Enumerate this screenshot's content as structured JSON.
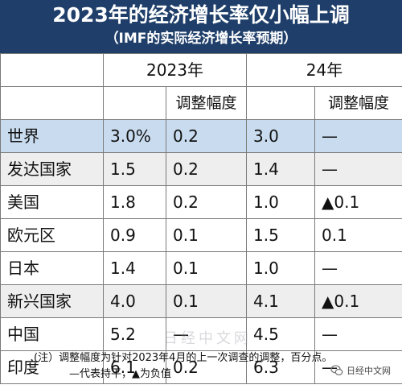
{
  "header": {
    "title": "2023年的经济增长率仅小幅上调",
    "subtitle": "（IMF的实际经济增长率预期）"
  },
  "table": {
    "year_headers": [
      "2023年",
      "24年"
    ],
    "adjust_label": "调整幅度",
    "rows": [
      {
        "name": "世界",
        "v2023": "3.0%",
        "adj2023": "0.2",
        "v24": "3.0",
        "adj24": "—"
      },
      {
        "name": "发达国家",
        "v2023": "1.5",
        "adj2023": "0.2",
        "v24": "1.4",
        "adj24": "—"
      },
      {
        "name": "美国",
        "v2023": "1.8",
        "adj2023": "0.2",
        "v24": "1.0",
        "adj24": "▲0.1"
      },
      {
        "name": "欧元区",
        "v2023": "0.9",
        "adj2023": "0.1",
        "v24": "1.5",
        "adj24": "0.1"
      },
      {
        "name": "日本",
        "v2023": "1.4",
        "adj2023": "0.1",
        "v24": "1.0",
        "adj24": "—"
      },
      {
        "name": "新兴国家",
        "v2023": "4.0",
        "adj2023": "0.1",
        "v24": "4.1",
        "adj24": "▲0.1"
      },
      {
        "name": "中国",
        "v2023": "5.2",
        "adj2023": "—",
        "v24": "4.5",
        "adj24": "—"
      },
      {
        "name": "印度",
        "v2023": "6.1",
        "adj2023": "0.2",
        "v24": "6.3",
        "adj24": "—"
      }
    ]
  },
  "notes": {
    "line1": "(注）调整幅度为针对2023年4月的上一次调查的调整，百分点。",
    "line2": "—代表持平，▲为负值"
  },
  "watermark": "日经中文网",
  "brand": "日经中文网",
  "colors": {
    "header_bg": "#1f3f6a",
    "shade_blue": "#c9dcef",
    "shade_gray": "#eeeeee"
  }
}
